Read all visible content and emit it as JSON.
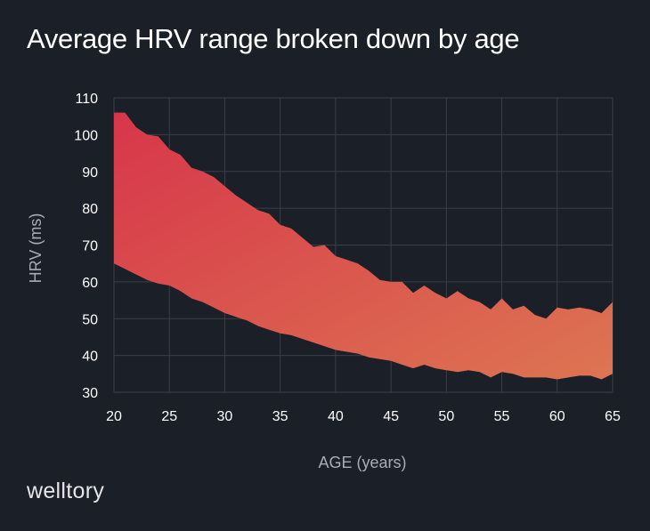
{
  "title": "Average HRV range broken down by age",
  "brand": "welltory",
  "chart_data": {
    "type": "area",
    "title": "Average HRV range broken down by age",
    "xlabel": "AGE (years)",
    "ylabel": "HRV (ms)",
    "xlim": [
      20,
      65
    ],
    "ylim": [
      30,
      110
    ],
    "xticks": [
      20,
      25,
      30,
      35,
      40,
      45,
      50,
      55,
      60,
      65
    ],
    "yticks": [
      30,
      40,
      50,
      60,
      70,
      80,
      90,
      100,
      110
    ],
    "grid": true,
    "colors": {
      "top": "#d7364a",
      "bottom": "#dd7552",
      "background": "#1b1f27",
      "grid": "#3a3f48"
    },
    "x": [
      20,
      21,
      22,
      23,
      24,
      25,
      26,
      27,
      28,
      29,
      30,
      31,
      32,
      33,
      34,
      35,
      36,
      37,
      38,
      39,
      40,
      41,
      42,
      43,
      44,
      45,
      46,
      47,
      48,
      49,
      50,
      51,
      52,
      53,
      54,
      55,
      56,
      57,
      58,
      59,
      60,
      61,
      62,
      63,
      64,
      65
    ],
    "upper": [
      106,
      106,
      102,
      100,
      99.5,
      96,
      94.5,
      91,
      90,
      88.5,
      86,
      83.5,
      81.5,
      79.5,
      78.5,
      75.5,
      74.5,
      72,
      69.5,
      70,
      67,
      66,
      65,
      63,
      60.5,
      60,
      60,
      57,
      59,
      57,
      55.5,
      57.5,
      55.5,
      54.5,
      52.5,
      55.5,
      52.5,
      53.5,
      51,
      50,
      53,
      52.5,
      53,
      52.5,
      51.5,
      54.5
    ],
    "lower": [
      65,
      63.5,
      62,
      60.5,
      59.5,
      59,
      57.5,
      55.5,
      54.5,
      53,
      51.5,
      50.5,
      49.5,
      48,
      47,
      46,
      45.5,
      44.5,
      43.5,
      42.5,
      41.5,
      41,
      40.5,
      39.5,
      39,
      38.5,
      37.5,
      36.5,
      37.5,
      36.5,
      36,
      35.5,
      36,
      35.5,
      34,
      35.5,
      35,
      34,
      34,
      34,
      33.5,
      34,
      34.5,
      34.5,
      33.5,
      35
    ]
  }
}
